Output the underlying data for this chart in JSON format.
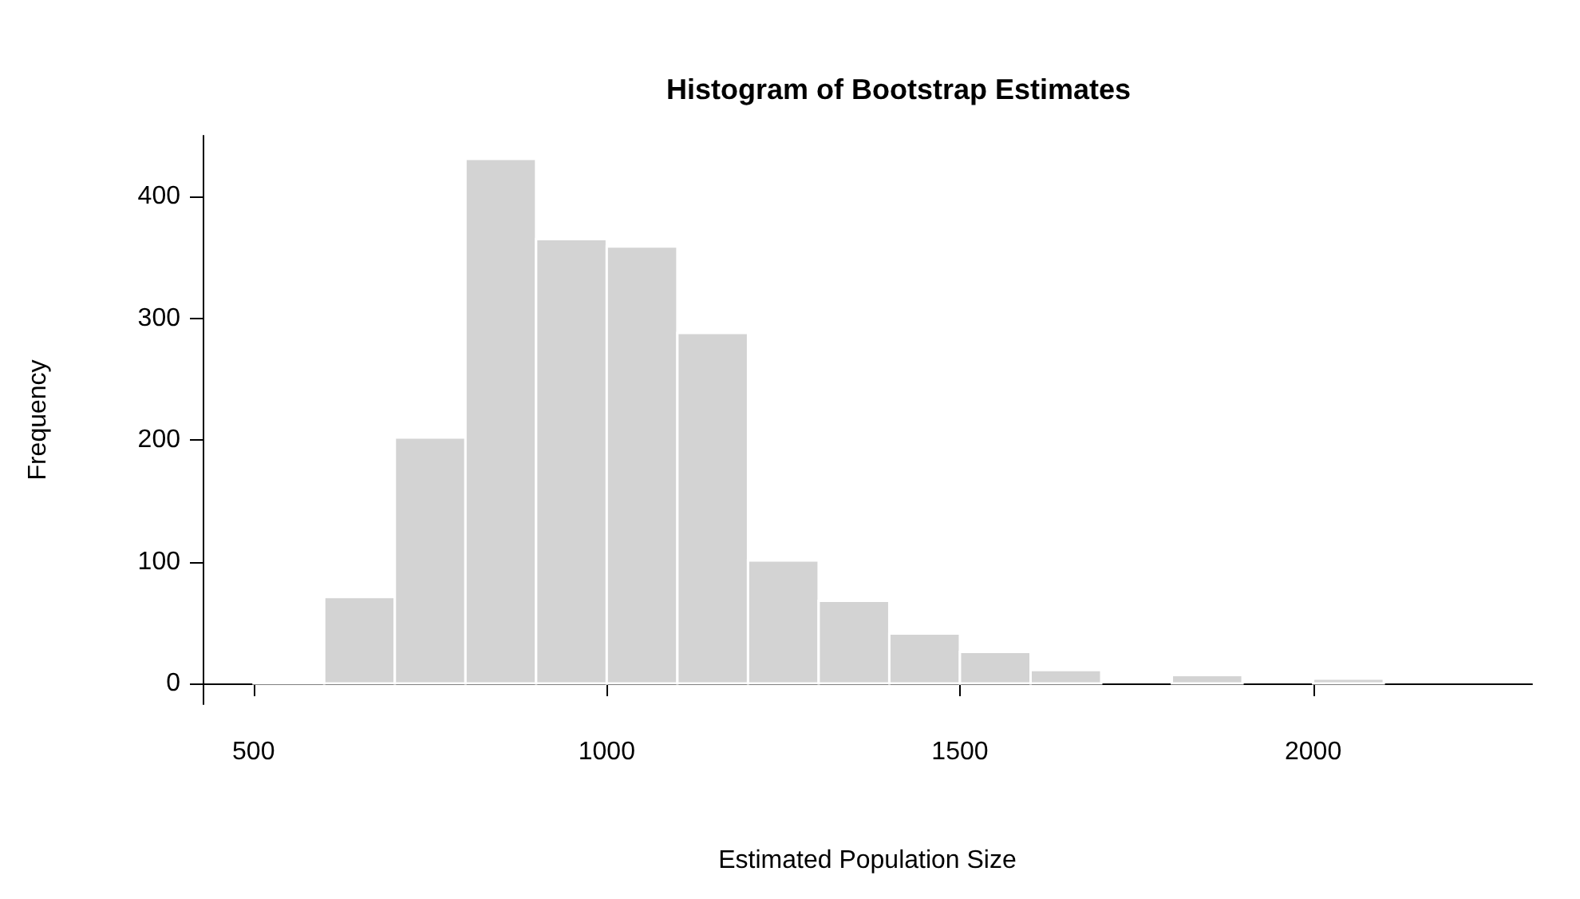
{
  "chart_data": {
    "type": "histogram",
    "title": "Histogram of Bootstrap Estimates",
    "xlabel": "Estimated Population Size",
    "ylabel": "Frequency",
    "bins": [
      500,
      600,
      700,
      800,
      900,
      1000,
      1100,
      1200,
      1300,
      1400,
      1500,
      1600,
      1700,
      1800,
      1900,
      2000,
      2100
    ],
    "values": [
      1,
      71,
      202,
      431,
      365,
      359,
      288,
      101,
      68,
      41,
      26,
      11,
      0,
      7,
      0,
      4
    ],
    "color": "#d3d3d3",
    "xlim": [
      428,
      2310
    ],
    "ylim": [
      -17,
      450
    ],
    "xticks": [
      500,
      1000,
      1500,
      2000
    ],
    "yticks": [
      0,
      100,
      200,
      300,
      400
    ],
    "grid": false
  }
}
